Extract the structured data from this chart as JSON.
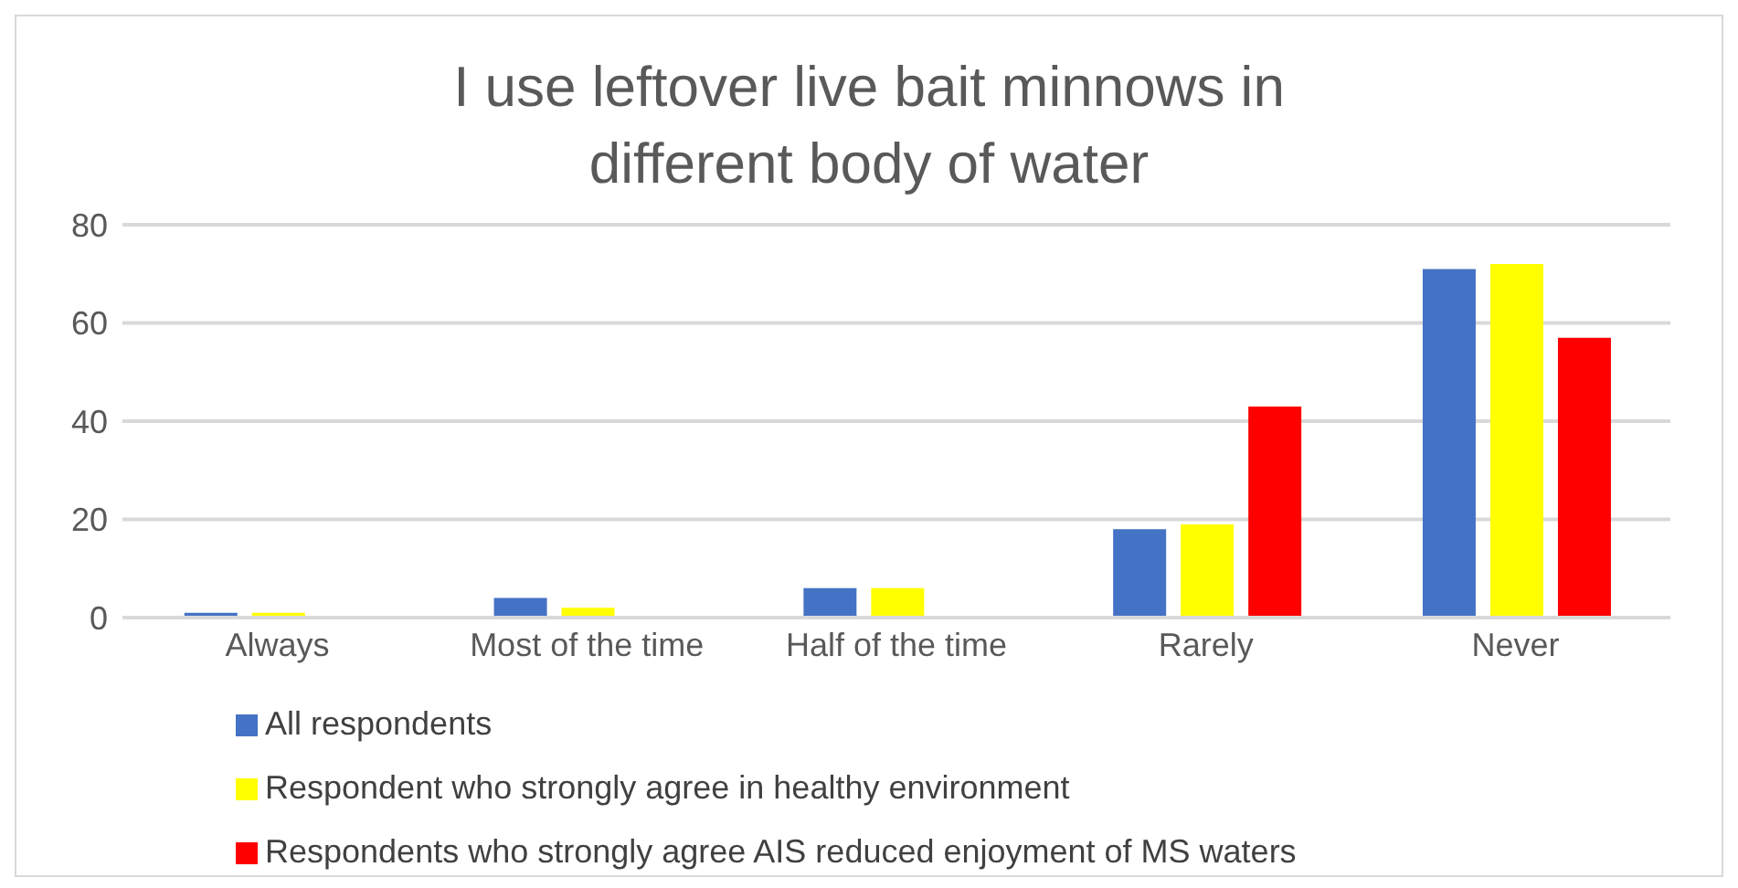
{
  "chart_data": {
    "type": "bar",
    "title": "I use leftover live bait minnows in different body of water",
    "categories": [
      "Always",
      "Most of the time",
      "Half of the time",
      "Rarely",
      "Never"
    ],
    "series": [
      {
        "name": "All respondents",
        "color": "#4472c4",
        "values": [
          1,
          4,
          6,
          18,
          71
        ]
      },
      {
        "name": "Respondent who strongly agree in healthy environment",
        "color": "#ffff00",
        "values": [
          1,
          2,
          6,
          19,
          72
        ]
      },
      {
        "name": "Respondents who strongly agree AIS reduced enjoyment of MS waters",
        "color": "#ff0000",
        "values": [
          0,
          0,
          0,
          43,
          57
        ]
      }
    ],
    "ylim": [
      0,
      80
    ],
    "yticks": [
      0,
      20,
      40,
      60,
      80
    ],
    "grid": "y",
    "legend": "bottom"
  }
}
